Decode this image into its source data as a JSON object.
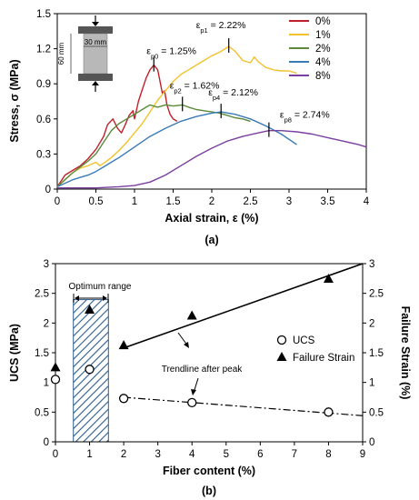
{
  "chart_data": [
    {
      "type": "line",
      "panel_label": "(a)",
      "xlabel": "Axial strain, ε (%)",
      "ylabel": "Stress, σ (MPa)",
      "xlim": [
        0,
        4
      ],
      "ylim": [
        0,
        1.5
      ],
      "xticks": [
        0,
        0.5,
        1,
        1.5,
        2,
        2.5,
        3,
        3.5,
        4
      ],
      "xtick_labels": [
        "0",
        "0.5",
        "1",
        "1.5",
        "2",
        "2.5",
        "3",
        "3.5",
        "4"
      ],
      "yticks": [
        0,
        0.3,
        0.6,
        0.9,
        1.2,
        1.5
      ],
      "ytick_labels": [
        "0",
        "0.3",
        "0.6",
        "0.9",
        "1.2",
        "1.5"
      ],
      "grid": false,
      "legend_position": "top-right",
      "series": [
        {
          "name": "0%",
          "color": "#c0202a",
          "points": [
            [
              0,
              0.02
            ],
            [
              0.05,
              0.07
            ],
            [
              0.1,
              0.12
            ],
            [
              0.2,
              0.16
            ],
            [
              0.3,
              0.2
            ],
            [
              0.4,
              0.26
            ],
            [
              0.5,
              0.34
            ],
            [
              0.6,
              0.45
            ],
            [
              0.65,
              0.55
            ],
            [
              0.72,
              0.6
            ],
            [
              0.78,
              0.52
            ],
            [
              0.83,
              0.48
            ],
            [
              0.88,
              0.55
            ],
            [
              0.93,
              0.63
            ],
            [
              0.98,
              0.67
            ],
            [
              1.0,
              0.6
            ],
            [
              1.05,
              0.75
            ],
            [
              1.1,
              0.85
            ],
            [
              1.15,
              0.95
            ],
            [
              1.2,
              1.02
            ],
            [
              1.25,
              1.06
            ],
            [
              1.3,
              1.02
            ],
            [
              1.33,
              0.92
            ],
            [
              1.36,
              0.82
            ],
            [
              1.39,
              0.84
            ],
            [
              1.42,
              0.72
            ],
            [
              1.46,
              0.64
            ],
            [
              1.5,
              0.6
            ],
            [
              1.55,
              0.58
            ]
          ]
        },
        {
          "name": "1%",
          "color": "#f2c12e",
          "points": [
            [
              0,
              0.02
            ],
            [
              0.1,
              0.08
            ],
            [
              0.2,
              0.14
            ],
            [
              0.3,
              0.18
            ],
            [
              0.4,
              0.2
            ],
            [
              0.5,
              0.23
            ],
            [
              0.55,
              0.2
            ],
            [
              0.6,
              0.22
            ],
            [
              0.7,
              0.27
            ],
            [
              0.8,
              0.33
            ],
            [
              0.9,
              0.4
            ],
            [
              1.0,
              0.48
            ],
            [
              1.1,
              0.56
            ],
            [
              1.2,
              0.66
            ],
            [
              1.3,
              0.76
            ],
            [
              1.4,
              0.84
            ],
            [
              1.5,
              0.92
            ],
            [
              1.6,
              0.98
            ],
            [
              1.7,
              1.02
            ],
            [
              1.8,
              1.06
            ],
            [
              1.9,
              1.1
            ],
            [
              2.0,
              1.14
            ],
            [
              2.1,
              1.17
            ],
            [
              2.22,
              1.22
            ],
            [
              2.3,
              1.18
            ],
            [
              2.4,
              1.1
            ],
            [
              2.5,
              1.08
            ],
            [
              2.55,
              1.13
            ],
            [
              2.6,
              1.09
            ],
            [
              2.7,
              1.04
            ],
            [
              2.8,
              1.02
            ],
            [
              2.9,
              1.01
            ],
            [
              3.0,
              1.01
            ],
            [
              3.1,
              0.99
            ]
          ]
        },
        {
          "name": "2%",
          "color": "#5a8a3a",
          "points": [
            [
              0,
              0.02
            ],
            [
              0.1,
              0.08
            ],
            [
              0.2,
              0.14
            ],
            [
              0.3,
              0.19
            ],
            [
              0.4,
              0.24
            ],
            [
              0.5,
              0.3
            ],
            [
              0.6,
              0.4
            ],
            [
              0.7,
              0.5
            ],
            [
              0.8,
              0.56
            ],
            [
              0.9,
              0.6
            ],
            [
              1.0,
              0.64
            ],
            [
              1.1,
              0.68
            ],
            [
              1.2,
              0.72
            ],
            [
              1.3,
              0.7
            ],
            [
              1.4,
              0.72
            ],
            [
              1.5,
              0.71
            ],
            [
              1.62,
              0.72
            ],
            [
              1.7,
              0.7
            ],
            [
              1.8,
              0.68
            ],
            [
              1.9,
              0.67
            ],
            [
              2.0,
              0.66
            ],
            [
              2.1,
              0.65
            ],
            [
              2.2,
              0.63
            ],
            [
              2.3,
              0.61
            ],
            [
              2.4,
              0.6
            ],
            [
              2.5,
              0.58
            ]
          ]
        },
        {
          "name": "4%",
          "color": "#3a7ab5",
          "points": [
            [
              0,
              0.02
            ],
            [
              0.1,
              0.05
            ],
            [
              0.2,
              0.08
            ],
            [
              0.3,
              0.1
            ],
            [
              0.4,
              0.12
            ],
            [
              0.5,
              0.15
            ],
            [
              0.6,
              0.19
            ],
            [
              0.8,
              0.27
            ],
            [
              1.0,
              0.36
            ],
            [
              1.2,
              0.45
            ],
            [
              1.4,
              0.52
            ],
            [
              1.6,
              0.58
            ],
            [
              1.8,
              0.62
            ],
            [
              2.0,
              0.65
            ],
            [
              2.12,
              0.66
            ],
            [
              2.3,
              0.64
            ],
            [
              2.5,
              0.6
            ],
            [
              2.7,
              0.54
            ],
            [
              2.9,
              0.47
            ],
            [
              3.1,
              0.38
            ]
          ]
        },
        {
          "name": "8%",
          "color": "#7a3fa0",
          "points": [
            [
              0,
              0.01
            ],
            [
              0.5,
              0.01
            ],
            [
              0.8,
              0.02
            ],
            [
              1.0,
              0.03
            ],
            [
              1.2,
              0.06
            ],
            [
              1.4,
              0.12
            ],
            [
              1.6,
              0.2
            ],
            [
              1.8,
              0.28
            ],
            [
              2.0,
              0.35
            ],
            [
              2.2,
              0.41
            ],
            [
              2.4,
              0.45
            ],
            [
              2.6,
              0.48
            ],
            [
              2.74,
              0.5
            ],
            [
              2.9,
              0.5
            ],
            [
              3.1,
              0.49
            ],
            [
              3.3,
              0.47
            ],
            [
              3.5,
              0.44
            ],
            [
              3.7,
              0.41
            ],
            [
              3.9,
              0.38
            ],
            [
              4.0,
              0.36
            ]
          ]
        }
      ],
      "annotations": [
        {
          "label": "εp0 = 1.25%",
          "sym": "ε",
          "sub": "p0",
          "rest": " = 1.25%",
          "x": 1.25,
          "y": 1.06
        },
        {
          "label": "εp1 = 2.22%",
          "sym": "ε",
          "sub": "p1",
          "rest": " = 2.22%",
          "x": 2.22,
          "y": 1.22
        },
        {
          "label": "εp2 = 1.62%",
          "sym": "ε",
          "sub": "p2",
          "rest": " = 1.62%",
          "x": 1.62,
          "y": 0.72
        },
        {
          "label": "εp4 = 2.12%",
          "sym": "ε",
          "sub": "p4",
          "rest": " = 2.12%",
          "x": 2.12,
          "y": 0.66
        },
        {
          "label": "εp8 = 2.74%",
          "sym": "ε",
          "sub": "p8",
          "rest": " = 2.74%",
          "x": 2.74,
          "y": 0.5
        }
      ],
      "specimen_inset": {
        "height_label": "60 mm",
        "width_label": "30 mm"
      }
    },
    {
      "type": "scatter",
      "panel_label": "(b)",
      "xlabel": "Fiber content (%)",
      "ylabel": "UCS (MPa)",
      "y2label": "Failure Strain (%)",
      "xlim": [
        0,
        9
      ],
      "ylim": [
        0,
        3
      ],
      "y2lim": [
        0,
        3
      ],
      "xticks": [
        0,
        1,
        2,
        3,
        4,
        5,
        6,
        7,
        8,
        9
      ],
      "xtick_labels": [
        "0",
        "1",
        "2",
        "3",
        "4",
        "5",
        "6",
        "7",
        "8",
        "9"
      ],
      "yticks": [
        0,
        0.5,
        1,
        1.5,
        2,
        2.5,
        3
      ],
      "ytick_labels": [
        "0",
        "0.5",
        "1",
        "1.5",
        "2",
        "2.5",
        "3"
      ],
      "grid": false,
      "legend_position": "right",
      "series": [
        {
          "name": "UCS",
          "marker": "open-circle",
          "axis": "left",
          "x": [
            0,
            1,
            2,
            4,
            8
          ],
          "y": [
            1.05,
            1.22,
            0.73,
            0.66,
            0.5
          ]
        },
        {
          "name": "Failure Strain",
          "marker": "filled-triangle",
          "axis": "right",
          "x": [
            0,
            1,
            2,
            4,
            8
          ],
          "y": [
            1.25,
            2.22,
            1.62,
            2.12,
            2.74
          ]
        }
      ],
      "trendlines": [
        {
          "series": "Failure Strain",
          "style": "solid",
          "x": [
            2,
            9
          ],
          "y": [
            1.58,
            3.0
          ]
        },
        {
          "series": "UCS",
          "style": "dash-dot",
          "x": [
            2,
            9
          ],
          "y": [
            0.75,
            0.44
          ]
        }
      ],
      "optimum_range": {
        "label": "Optimum range",
        "x": [
          0.5,
          1.5
        ],
        "y": [
          0,
          2.45
        ]
      },
      "trendline_label": "Trendline after peak"
    }
  ]
}
